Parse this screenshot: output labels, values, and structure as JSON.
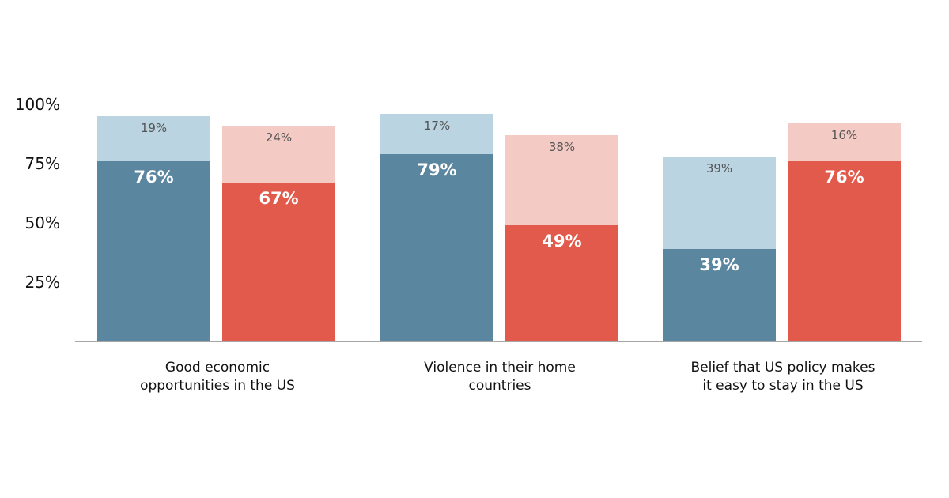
{
  "chart_data": {
    "type": "bar",
    "stacked": true,
    "grouped": true,
    "categories": [
      "Good economic opportunities in the US",
      "Violence in their home countries",
      "Belief that US policy makes it easy to stay in the US"
    ],
    "series": [
      {
        "color": "#5a869f",
        "top_color": "#bad4e1",
        "strong": [
          76,
          79,
          39
        ],
        "light": [
          19,
          17,
          39
        ],
        "strong_labels": [
          "76%",
          "79%",
          "39%"
        ],
        "light_labels": [
          "19%",
          "17%",
          "39%"
        ]
      },
      {
        "color": "#e15a4b",
        "top_color": "#f4cac4",
        "strong": [
          67,
          49,
          76
        ],
        "light": [
          24,
          38,
          16
        ],
        "strong_labels": [
          "67%",
          "49%",
          "76%"
        ],
        "light_labels": [
          "24%",
          "38%",
          "16%"
        ]
      }
    ],
    "yticks": [
      {
        "value": 25,
        "label": "25%"
      },
      {
        "value": 50,
        "label": "50%"
      },
      {
        "value": 75,
        "label": "75%"
      },
      {
        "value": 100,
        "label": "100%"
      }
    ],
    "ylim": [
      0,
      100
    ],
    "grid": false,
    "legend": "none"
  }
}
